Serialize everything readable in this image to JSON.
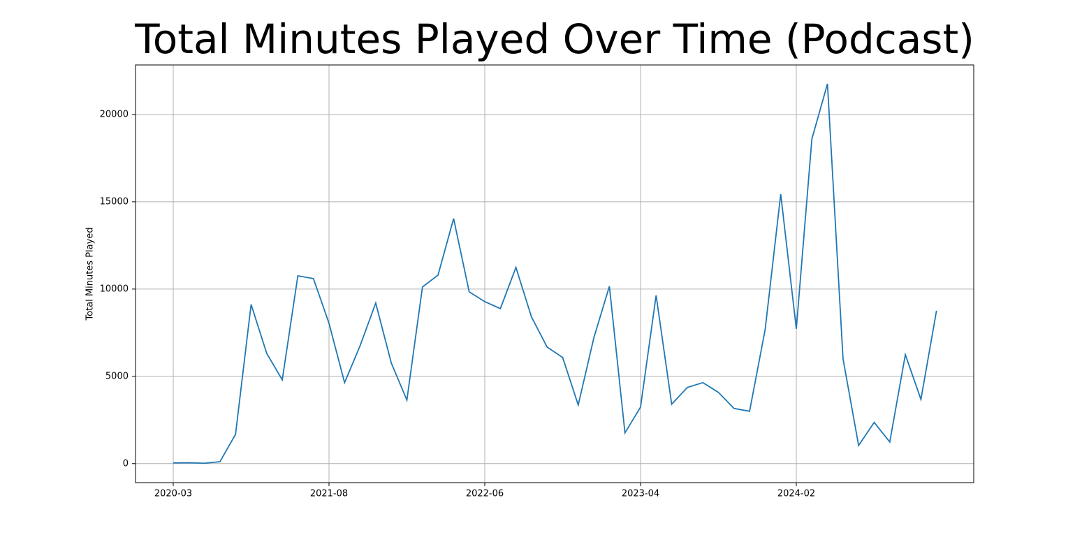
{
  "chart_data": {
    "type": "line",
    "title": "Total Minutes Played Over Time (Podcast)",
    "y_label": "Total Minutes Played",
    "categories": [
      "2020-03",
      null,
      null,
      null,
      null,
      null,
      null,
      null,
      null,
      null,
      "2021-08",
      null,
      null,
      null,
      null,
      null,
      null,
      null,
      null,
      null,
      "2022-06",
      null,
      null,
      null,
      null,
      null,
      null,
      null,
      null,
      null,
      "2023-04",
      null,
      null,
      null,
      null,
      null,
      null,
      null,
      null,
      null,
      "2024-02",
      null,
      null,
      null,
      null,
      null,
      null,
      null,
      null,
      null
    ],
    "series": [
      {
        "name": "Total Minutes Played",
        "color": "#1f77b4",
        "values": [
          40,
          50,
          20,
          110,
          1680,
          9120,
          6320,
          4800,
          10760,
          10600,
          8040,
          4640,
          6760,
          9200,
          5760,
          3640,
          10120,
          10800,
          14040,
          9840,
          9280,
          8880,
          11240,
          8400,
          6680,
          6080,
          3360,
          7200,
          10160,
          1760,
          3240,
          9640,
          3400,
          4360,
          4640,
          4080,
          3160,
          3000,
          7680,
          15440,
          7720,
          18600,
          21760,
          6000,
          1040,
          2360,
          1240,
          6240,
          3680,
          8760
        ]
      }
    ],
    "ylim": [
      -1090,
      22840
    ],
    "yticks": [
      0,
      5000,
      10000,
      15000,
      20000
    ],
    "grid": true
  }
}
